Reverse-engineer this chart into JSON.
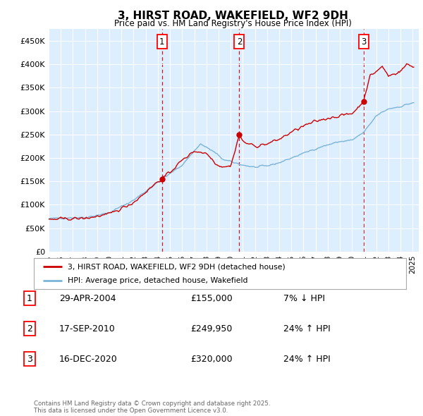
{
  "title": "3, HIRST ROAD, WAKEFIELD, WF2 9DH",
  "subtitle": "Price paid vs. HM Land Registry's House Price Index (HPI)",
  "ylim": [
    0,
    475000
  ],
  "yticks": [
    0,
    50000,
    100000,
    150000,
    200000,
    250000,
    300000,
    350000,
    400000,
    450000
  ],
  "ytick_labels": [
    "£0",
    "£50K",
    "£100K",
    "£150K",
    "£200K",
    "£250K",
    "£300K",
    "£350K",
    "£400K",
    "£450K"
  ],
  "hpi_color": "#7ab4d8",
  "price_color": "#cc0000",
  "background_color": "#ddeeff",
  "sale_year_nums": [
    2004.33,
    2010.71,
    2020.96
  ],
  "sale_prices": [
    155000,
    249950,
    320000
  ],
  "sale_labels": [
    "1",
    "2",
    "3"
  ],
  "legend_line1": "3, HIRST ROAD, WAKEFIELD, WF2 9DH (detached house)",
  "legend_line2": "HPI: Average price, detached house, Wakefield",
  "table_rows": [
    [
      "1",
      "29-APR-2004",
      "£155,000",
      "7% ↓ HPI"
    ],
    [
      "2",
      "17-SEP-2010",
      "£249,950",
      "24% ↑ HPI"
    ],
    [
      "3",
      "16-DEC-2020",
      "£320,000",
      "24% ↑ HPI"
    ]
  ],
  "footnote": "Contains HM Land Registry data © Crown copyright and database right 2025.\nThis data is licensed under the Open Government Licence v3.0."
}
